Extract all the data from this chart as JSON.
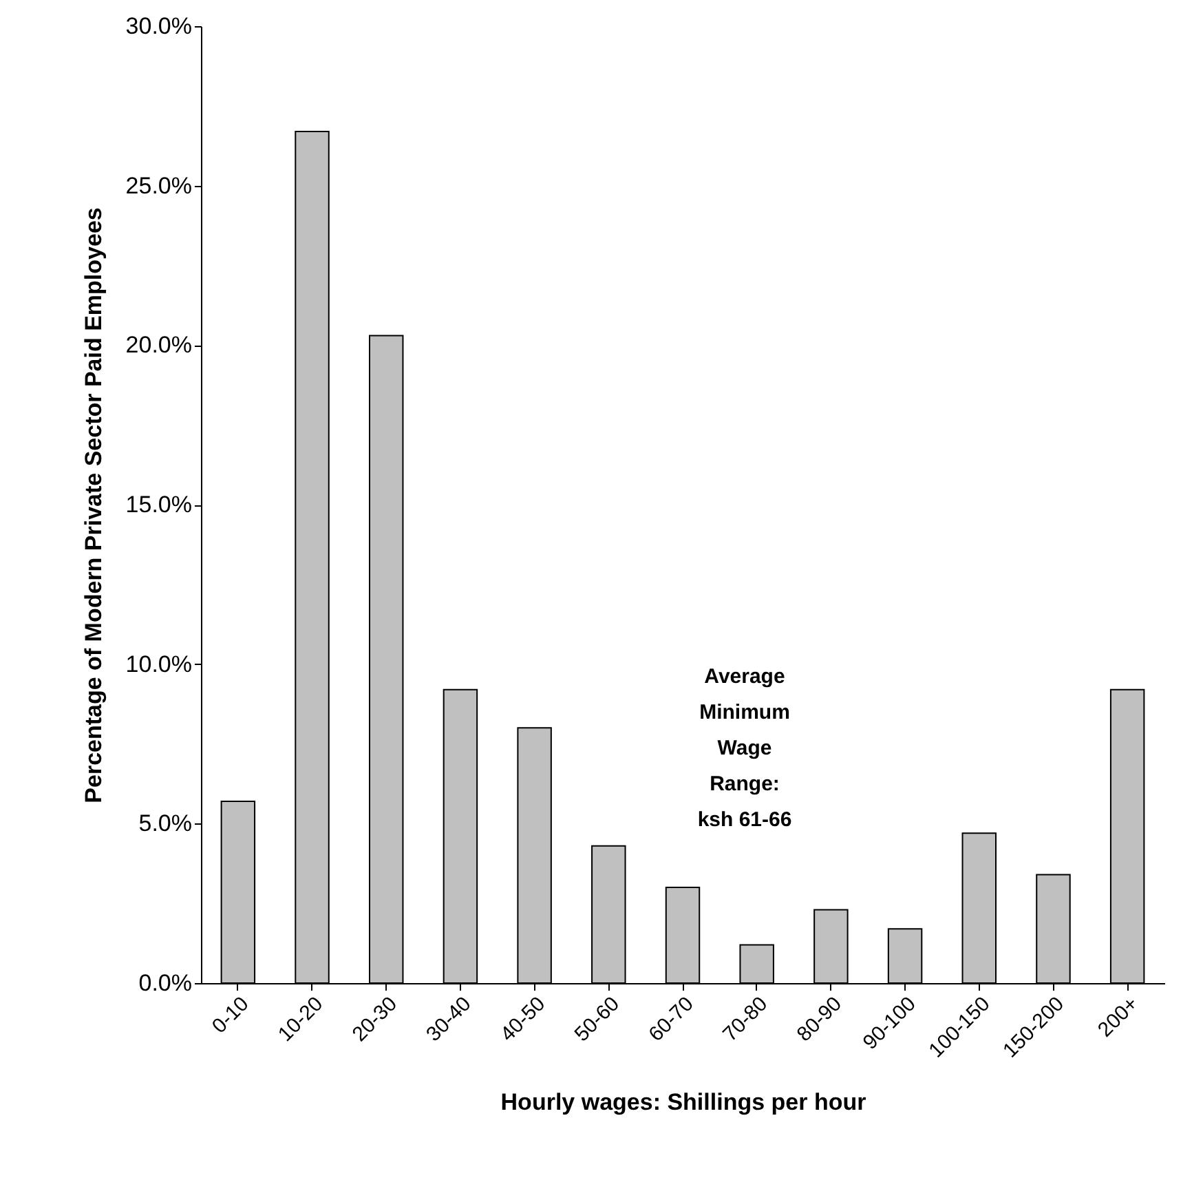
{
  "chart_data": {
    "type": "bar",
    "xlabel": "Hourly wages: Shillings per hour",
    "ylabel": "Percentage of Modern Private Sector Paid Employees",
    "categories": [
      "0-10",
      "10-20",
      "20-30",
      "30-40",
      "40-50",
      "50-60",
      "60-70",
      "70-80",
      "80-90",
      "90-100",
      "100-150",
      "150-200",
      "200+"
    ],
    "values": [
      5.7,
      26.7,
      20.3,
      9.2,
      8.0,
      4.3,
      3.0,
      1.2,
      2.3,
      1.7,
      4.7,
      3.4,
      9.2
    ],
    "color": "#c0c0c0",
    "ylim": [
      0,
      30
    ],
    "yticks": [
      {
        "value": 0,
        "label": "0.0%"
      },
      {
        "value": 5,
        "label": "5.0%"
      },
      {
        "value": 10,
        "label": "10.0%"
      },
      {
        "value": 15,
        "label": "15.0%"
      },
      {
        "value": 20,
        "label": "20.0%"
      },
      {
        "value": 25,
        "label": "25.0%"
      },
      {
        "value": 30,
        "label": "30.0%"
      }
    ],
    "annotations": [
      "Average Minimum Wage Range: ksh 61-66"
    ]
  }
}
